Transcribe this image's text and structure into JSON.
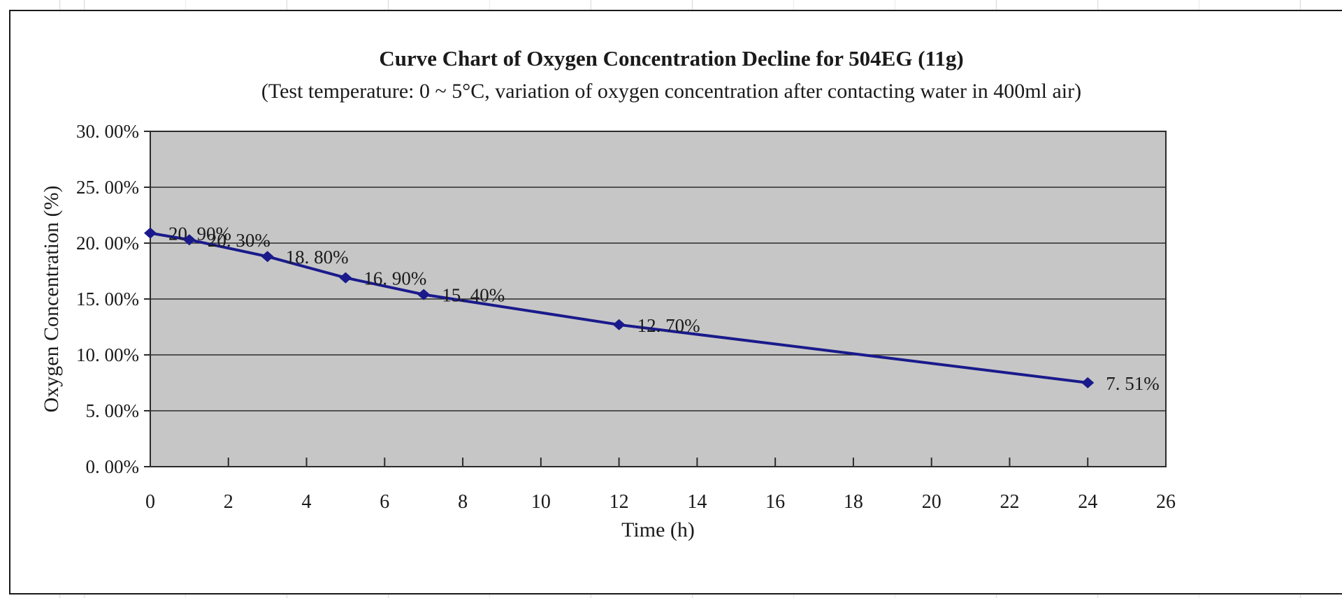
{
  "chart_data": {
    "type": "line",
    "title": "Curve Chart of Oxygen Concentration Decline for 504EG (11g)",
    "subtitle": "(Test temperature: 0 ~ 5°C, variation of oxygen concentration after contacting water in 400ml air)",
    "xlabel": "Time (h)",
    "ylabel": "Oxygen Concentration (%)",
    "series_name": "Oxygen concentration",
    "x": [
      0,
      1,
      3,
      5,
      7,
      12,
      24
    ],
    "values": [
      20.9,
      20.3,
      18.8,
      16.9,
      15.4,
      12.7,
      7.51
    ],
    "point_labels_display": [
      "20. 90%",
      "20. 30%",
      "18. 80%",
      "16. 90%",
      "15. 40%",
      "12. 70%",
      "7. 51%"
    ],
    "xlim": [
      0,
      26
    ],
    "ylim": [
      0,
      30
    ],
    "x_tick_labels": [
      "0",
      "2",
      "4",
      "6",
      "8",
      "10",
      "12",
      "14",
      "16",
      "18",
      "20",
      "22",
      "24",
      "26"
    ],
    "x_tick_values": [
      0,
      2,
      4,
      6,
      8,
      10,
      12,
      14,
      16,
      18,
      20,
      22,
      24,
      26
    ],
    "y_tick_labels_display": [
      "0. 00%",
      "5. 00%",
      "10. 00%",
      "15. 00%",
      "20. 00%",
      "25. 00%",
      "30. 00%"
    ],
    "y_tick_values": [
      0,
      5,
      10,
      15,
      20,
      25,
      30
    ],
    "grid": "horizontal-only",
    "legend": "none",
    "marker": "diamond",
    "colors": {
      "series": "#1a1a8c",
      "plot_background": "#c6c6c6",
      "gridline": "#2b2b2b",
      "axis": "#2b2b2b",
      "chart_border": "#1a1a1a",
      "text": "#1a1a1a",
      "chart_background": "#ffffff"
    }
  }
}
